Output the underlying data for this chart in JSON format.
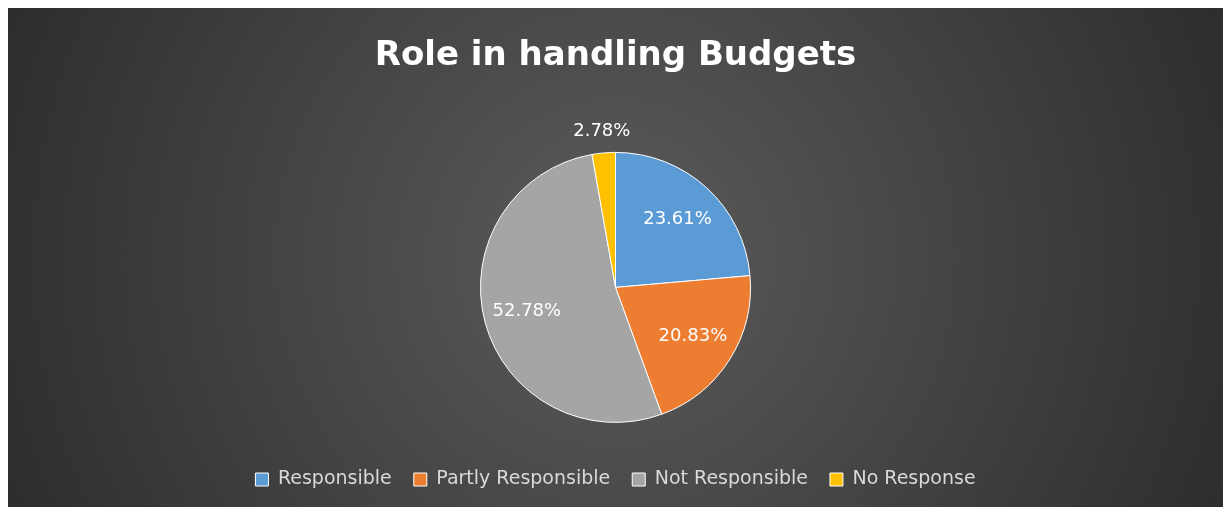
{
  "chart_data": {
    "type": "pie",
    "title": "Role in handling Budgets",
    "categories": [
      "Responsible",
      "Partly Responsible",
      "Not Responsible",
      "No Response"
    ],
    "values": [
      23.61,
      20.83,
      52.78,
      2.78
    ],
    "value_labels": [
      "23.61%",
      "20.83%",
      "52.78%",
      "2.78%"
    ],
    "colors": [
      "#5b9bd5",
      "#ed7d31",
      "#a5a5a5",
      "#ffc000"
    ],
    "legend": "bottom"
  }
}
